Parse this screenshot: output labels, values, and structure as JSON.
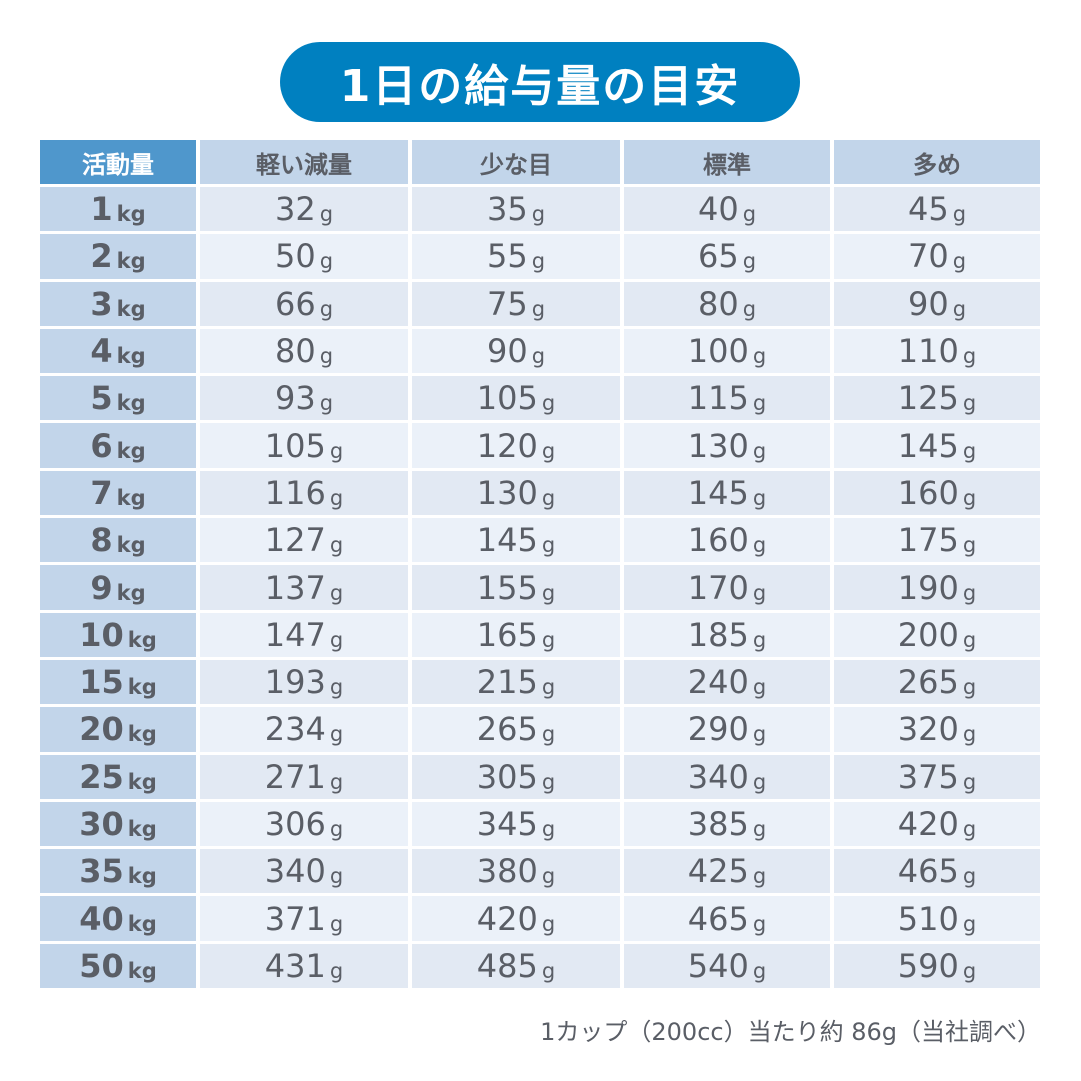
{
  "title": "1日の給与量の目安",
  "headers": [
    "活動量",
    "軽い減量",
    "少な目",
    "標準",
    "多め"
  ],
  "weight_unit": "kg",
  "amount_unit": "g",
  "rows": [
    {
      "weight": "1",
      "values": [
        "32",
        "35",
        "40",
        "45"
      ]
    },
    {
      "weight": "2",
      "values": [
        "50",
        "55",
        "65",
        "70"
      ]
    },
    {
      "weight": "3",
      "values": [
        "66",
        "75",
        "80",
        "90"
      ]
    },
    {
      "weight": "4",
      "values": [
        "80",
        "90",
        "100",
        "110"
      ]
    },
    {
      "weight": "5",
      "values": [
        "93",
        "105",
        "115",
        "125"
      ]
    },
    {
      "weight": "6",
      "values": [
        "105",
        "120",
        "130",
        "145"
      ]
    },
    {
      "weight": "7",
      "values": [
        "116",
        "130",
        "145",
        "160"
      ]
    },
    {
      "weight": "8",
      "values": [
        "127",
        "145",
        "160",
        "175"
      ]
    },
    {
      "weight": "9",
      "values": [
        "137",
        "155",
        "170",
        "190"
      ]
    },
    {
      "weight": "10",
      "values": [
        "147",
        "165",
        "185",
        "200"
      ]
    },
    {
      "weight": "15",
      "values": [
        "193",
        "215",
        "240",
        "265"
      ]
    },
    {
      "weight": "20",
      "values": [
        "234",
        "265",
        "290",
        "320"
      ]
    },
    {
      "weight": "25",
      "values": [
        "271",
        "305",
        "340",
        "375"
      ]
    },
    {
      "weight": "30",
      "values": [
        "306",
        "345",
        "385",
        "420"
      ]
    },
    {
      "weight": "35",
      "values": [
        "340",
        "380",
        "425",
        "465"
      ]
    },
    {
      "weight": "40",
      "values": [
        "371",
        "420",
        "465",
        "510"
      ]
    },
    {
      "weight": "50",
      "values": [
        "431",
        "485",
        "540",
        "590"
      ]
    }
  ],
  "note": "1カップ（200cc）当たり約 86g（当社調べ）",
  "colors": {
    "title_bg": "#0080c0",
    "header_first": "#4f97cc",
    "header": "#c2d5ea",
    "row_odd": "#e2e9f3",
    "row_even": "#ebf1f9",
    "text": "#5a5e66"
  }
}
